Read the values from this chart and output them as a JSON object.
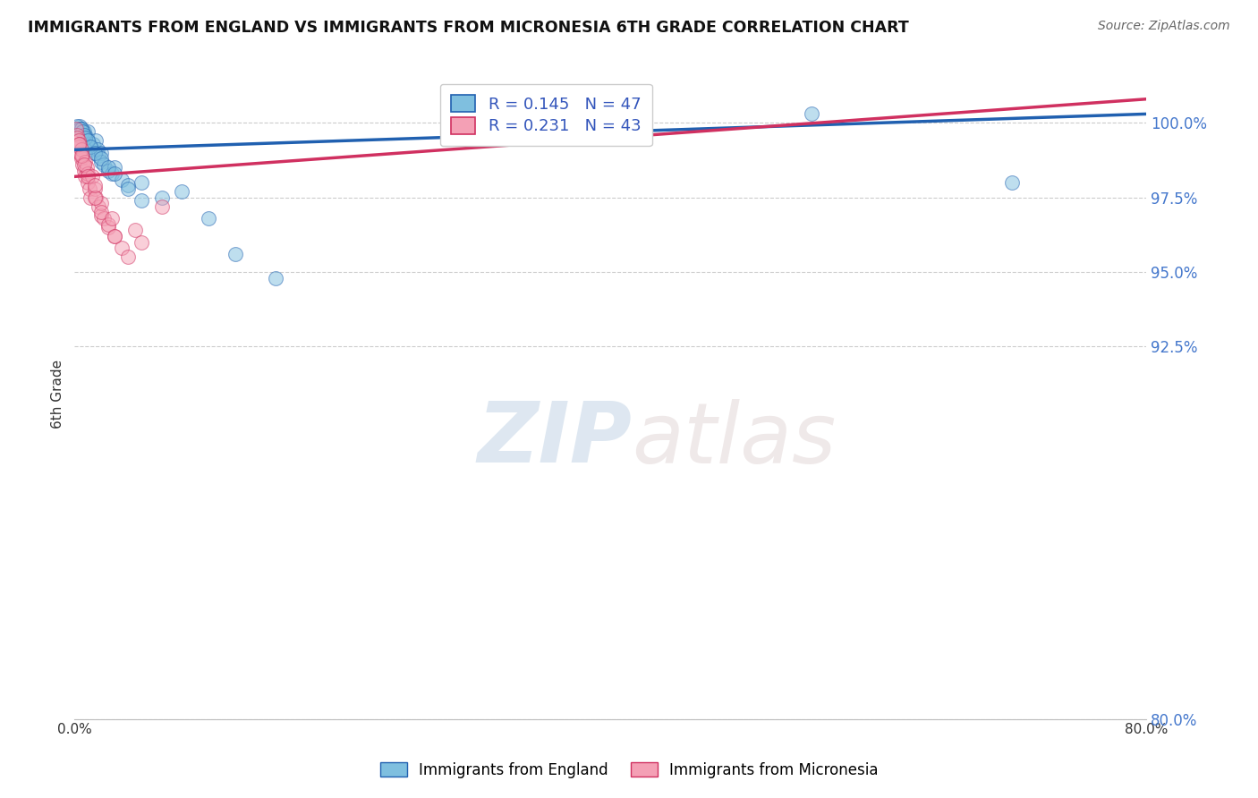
{
  "title": "IMMIGRANTS FROM ENGLAND VS IMMIGRANTS FROM MICRONESIA 6TH GRADE CORRELATION CHART",
  "source": "Source: ZipAtlas.com",
  "ylabel": "6th Grade",
  "yticks": [
    80.0,
    92.5,
    95.0,
    97.5,
    100.0
  ],
  "ytick_labels": [
    "80.0%",
    "92.5%",
    "95.0%",
    "97.5%",
    "100.0%"
  ],
  "xlim": [
    0.0,
    80.0
  ],
  "ylim": [
    80.0,
    101.8
  ],
  "R_england": 0.145,
  "N_england": 47,
  "R_micronesia": 0.231,
  "N_micronesia": 43,
  "england_color": "#7fbfdf",
  "micronesia_color": "#f4a0b5",
  "england_line_color": "#2060b0",
  "micronesia_line_color": "#d03060",
  "england_trend_x": [
    0.0,
    80.0
  ],
  "england_trend_y": [
    99.1,
    100.3
  ],
  "micronesia_trend_x": [
    0.0,
    80.0
  ],
  "micronesia_trend_y": [
    98.2,
    100.8
  ],
  "england_x": [
    0.3,
    0.4,
    0.5,
    0.6,
    0.7,
    0.8,
    0.9,
    1.0,
    1.0,
    1.1,
    1.2,
    1.3,
    1.4,
    1.5,
    1.6,
    1.7,
    1.8,
    2.0,
    2.0,
    2.2,
    2.5,
    2.8,
    3.0,
    3.5,
    4.0,
    5.0,
    6.5,
    8.0,
    10.0,
    12.0,
    15.0,
    55.0,
    70.0,
    0.2,
    0.4,
    0.5,
    0.6,
    0.7,
    0.8,
    1.0,
    1.2,
    1.5,
    2.0,
    2.5,
    3.0,
    4.0,
    5.0
  ],
  "england_y": [
    99.8,
    99.9,
    99.8,
    99.7,
    99.7,
    99.6,
    99.5,
    99.4,
    99.7,
    99.3,
    99.2,
    99.1,
    99.3,
    99.0,
    99.4,
    99.1,
    98.9,
    99.0,
    98.7,
    98.6,
    98.4,
    98.3,
    98.5,
    98.1,
    97.9,
    98.0,
    97.5,
    97.7,
    96.8,
    95.6,
    94.8,
    100.3,
    98.0,
    99.9,
    99.8,
    99.8,
    99.7,
    99.6,
    99.5,
    99.4,
    99.2,
    99.0,
    98.8,
    98.5,
    98.3,
    97.8,
    97.4
  ],
  "micronesia_x": [
    0.1,
    0.2,
    0.2,
    0.3,
    0.3,
    0.4,
    0.4,
    0.5,
    0.5,
    0.6,
    0.6,
    0.7,
    0.8,
    0.8,
    0.9,
    1.0,
    1.0,
    1.1,
    1.2,
    1.3,
    1.5,
    1.6,
    1.8,
    2.0,
    2.0,
    2.2,
    2.5,
    3.0,
    3.5,
    4.0,
    5.0,
    6.5,
    0.3,
    0.5,
    0.7,
    1.0,
    1.5,
    2.0,
    2.5,
    3.0,
    1.5,
    2.8,
    4.5
  ],
  "micronesia_y": [
    99.8,
    99.6,
    99.5,
    99.4,
    99.2,
    99.0,
    99.3,
    98.8,
    99.1,
    98.6,
    98.9,
    98.4,
    98.7,
    98.2,
    98.5,
    98.0,
    98.3,
    97.8,
    97.5,
    98.2,
    97.8,
    97.5,
    97.2,
    96.9,
    97.3,
    96.8,
    96.5,
    96.2,
    95.8,
    95.5,
    96.0,
    97.2,
    99.3,
    98.9,
    98.6,
    98.2,
    97.5,
    97.0,
    96.6,
    96.2,
    97.9,
    96.8,
    96.4
  ],
  "watermark_zip": "ZIP",
  "watermark_atlas": "atlas",
  "background_color": "#ffffff",
  "grid_color": "#cccccc"
}
